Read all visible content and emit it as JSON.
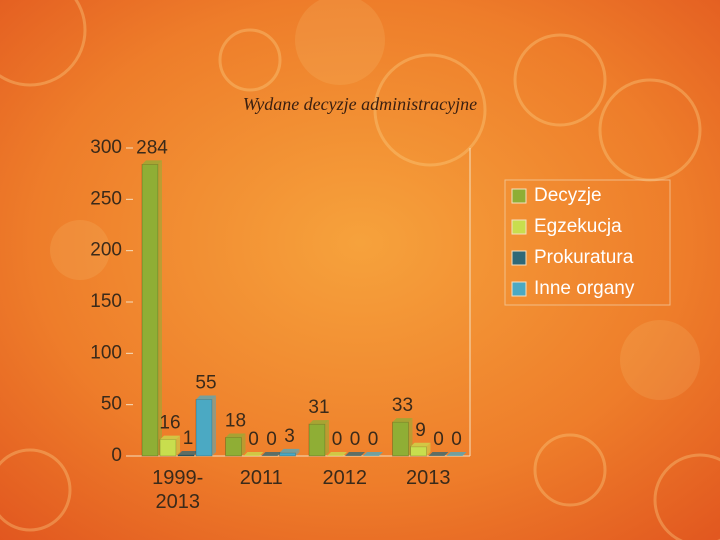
{
  "chart_data": {
    "type": "bar",
    "title": "Wydane decyzje administracyjne",
    "categories": [
      "1999-2013",
      "2011",
      "2012",
      "2013"
    ],
    "series": [
      {
        "name": "Decyzje",
        "color": "#8fae35",
        "values": [
          284,
          18,
          31,
          33
        ]
      },
      {
        "name": "Egzekucja",
        "color": "#c8de4e",
        "values": [
          16,
          0,
          0,
          9
        ]
      },
      {
        "name": "Prokuratura",
        "color": "#2f6877",
        "values": [
          1,
          0,
          0,
          0
        ]
      },
      {
        "name": "Inne organy",
        "color": "#4ba9c3",
        "values": [
          55,
          3,
          0,
          0
        ]
      }
    ],
    "ylim": [
      0,
      300
    ],
    "yticks": [
      0,
      50,
      100,
      150,
      200,
      250,
      300
    ],
    "legend": "right"
  }
}
